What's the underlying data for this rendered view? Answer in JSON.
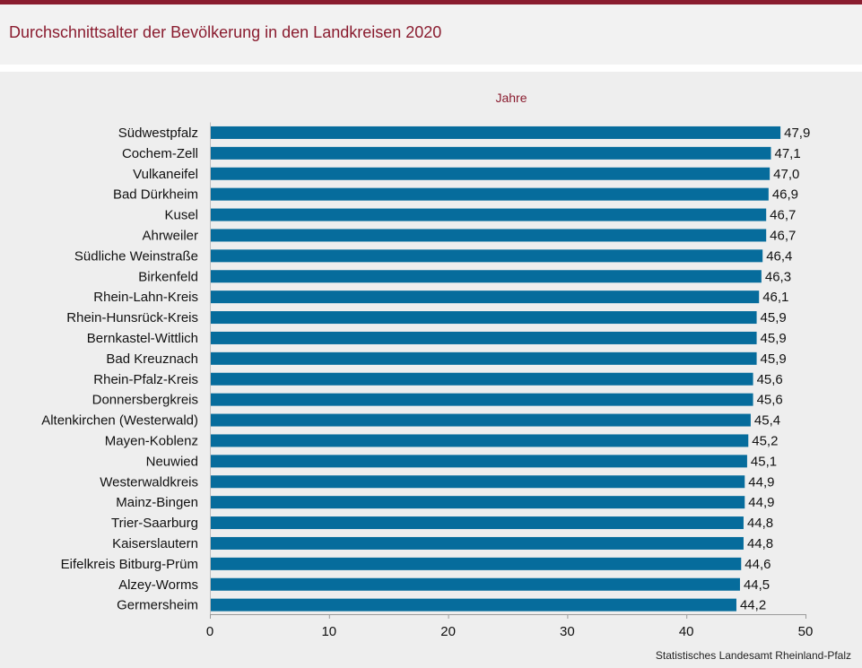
{
  "title": "Durchschnittsalter der Bevölkerung in den Landkreisen 2020",
  "source": "Statistisches Landesamt  Rheinland-Pfalz",
  "colors": {
    "bar": "#066c9c",
    "accent": "#8a1c2f"
  },
  "chart_data": {
    "type": "bar",
    "orientation": "horizontal",
    "title": "Durchschnittsalter der Bevölkerung in den Landkreisen 2020",
    "xlabel": "Jahre",
    "xlim": [
      0,
      50
    ],
    "xticks": [
      "0",
      "10",
      "20",
      "30",
      "40",
      "50"
    ],
    "grid": false,
    "categories": [
      "Südwestpfalz",
      "Cochem-Zell",
      "Vulkaneifel",
      "Bad Dürkheim",
      "Kusel",
      "Ahrweiler",
      "Südliche Weinstraße",
      "Birkenfeld",
      "Rhein-Lahn-Kreis",
      "Rhein-Hunsrück-Kreis",
      "Bernkastel-Wittlich",
      "Bad Kreuznach",
      "Rhein-Pfalz-Kreis",
      "Donnersbergkreis",
      "Altenkirchen (Westerwald)",
      "Mayen-Koblenz",
      "Neuwied",
      "Westerwaldkreis",
      "Mainz-Bingen",
      "Trier-Saarburg",
      "Kaiserslautern",
      "Eifelkreis Bitburg-Prüm",
      "Alzey-Worms",
      "Germersheim"
    ],
    "values": [
      47.9,
      47.1,
      47.0,
      46.9,
      46.7,
      46.7,
      46.4,
      46.3,
      46.1,
      45.9,
      45.9,
      45.9,
      45.6,
      45.6,
      45.4,
      45.2,
      45.1,
      44.9,
      44.9,
      44.8,
      44.8,
      44.6,
      44.5,
      44.2
    ],
    "value_labels": [
      "47,9",
      "47,1",
      "47,0",
      "46,9",
      "46,7",
      "46,7",
      "46,4",
      "46,3",
      "46,1",
      "45,9",
      "45,9",
      "45,9",
      "45,6",
      "45,6",
      "45,4",
      "45,2",
      "45,1",
      "44,9",
      "44,9",
      "44,8",
      "44,8",
      "44,6",
      "44,5",
      "44,2"
    ]
  }
}
